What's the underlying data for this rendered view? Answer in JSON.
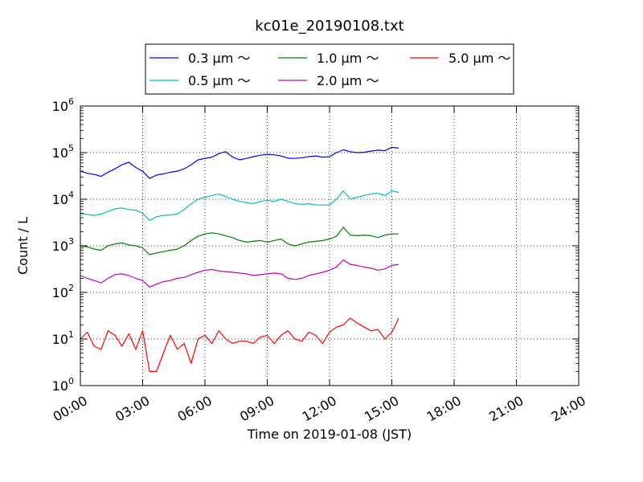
{
  "chart_data": {
    "type": "line",
    "title": "kc01e_20190108.txt",
    "xlabel": "Time on 2019-01-08 (JST)",
    "ylabel": "Count / L",
    "yscale": "log",
    "ylim": [
      1,
      1000000
    ],
    "xlim": [
      "00:00",
      "24:00"
    ],
    "grid": true,
    "legend_position": "top-center",
    "x_ticks": [
      "00:00",
      "03:00",
      "06:00",
      "09:00",
      "12:00",
      "15:00",
      "18:00",
      "21:00",
      "24:00"
    ],
    "y_ticks": [
      {
        "base": "10",
        "exp": "0",
        "value": 1
      },
      {
        "base": "10",
        "exp": "1",
        "value": 10
      },
      {
        "base": "10",
        "exp": "2",
        "value": 100
      },
      {
        "base": "10",
        "exp": "3",
        "value": 1000
      },
      {
        "base": "10",
        "exp": "4",
        "value": 10000
      },
      {
        "base": "10",
        "exp": "5",
        "value": 100000
      },
      {
        "base": "10",
        "exp": "6",
        "value": 1000000
      }
    ],
    "x": [
      "00:00",
      "00:20",
      "00:40",
      "01:00",
      "01:20",
      "01:40",
      "02:00",
      "02:20",
      "02:40",
      "03:00",
      "03:20",
      "03:40",
      "04:00",
      "04:20",
      "04:40",
      "05:00",
      "05:20",
      "05:40",
      "06:00",
      "06:20",
      "06:40",
      "07:00",
      "07:20",
      "07:40",
      "08:00",
      "08:20",
      "08:40",
      "09:00",
      "09:20",
      "09:40",
      "10:00",
      "10:20",
      "10:40",
      "11:00",
      "11:20",
      "11:40",
      "12:00",
      "12:20",
      "12:40",
      "13:00",
      "13:20",
      "13:40",
      "14:00",
      "14:20",
      "14:40",
      "15:00",
      "15:20"
    ],
    "series": [
      {
        "name": "0.3 µm ～",
        "color": "#0000ff",
        "values": [
          40000,
          36000,
          34000,
          31000,
          38000,
          45000,
          55000,
          62000,
          48000,
          40000,
          28000,
          33000,
          35000,
          38000,
          40000,
          45000,
          55000,
          70000,
          75000,
          80000,
          95000,
          105000,
          80000,
          70000,
          75000,
          82000,
          88000,
          92000,
          90000,
          85000,
          76000,
          75000,
          78000,
          82000,
          85000,
          80000,
          82000,
          100000,
          115000,
          105000,
          100000,
          102000,
          108000,
          113000,
          110000,
          130000,
          125000
        ]
      },
      {
        "name": "0.5 µm ～",
        "color": "#00bfbf",
        "values": [
          5000,
          4700,
          4500,
          4800,
          5500,
          6200,
          6500,
          6000,
          5800,
          5000,
          3500,
          4200,
          4500,
          4600,
          4800,
          6000,
          8000,
          10000,
          11000,
          12000,
          13000,
          11500,
          10000,
          9000,
          8500,
          8000,
          9000,
          9500,
          9000,
          10000,
          9000,
          8000,
          7800,
          8000,
          7500,
          7500,
          7500,
          10000,
          15000,
          10000,
          11000,
          12000,
          13000,
          13500,
          12000,
          15000,
          14000
        ]
      },
      {
        "name": "1.0 µm ～",
        "color": "#008000",
        "values": [
          1000,
          950,
          850,
          800,
          1000,
          1100,
          1150,
          1050,
          1000,
          900,
          650,
          700,
          750,
          800,
          850,
          1000,
          1300,
          1600,
          1800,
          1900,
          1800,
          1650,
          1500,
          1300,
          1200,
          1250,
          1300,
          1200,
          1300,
          1400,
          1100,
          1000,
          1100,
          1200,
          1250,
          1300,
          1400,
          1600,
          2500,
          1700,
          1650,
          1700,
          1650,
          1500,
          1700,
          1800,
          1800
        ]
      },
      {
        "name": "2.0 µm ～",
        "color": "#bf00bf",
        "values": [
          230,
          200,
          180,
          160,
          200,
          240,
          250,
          230,
          200,
          180,
          130,
          150,
          170,
          180,
          200,
          210,
          240,
          270,
          300,
          310,
          290,
          280,
          270,
          260,
          250,
          230,
          240,
          250,
          260,
          250,
          200,
          190,
          200,
          230,
          250,
          270,
          300,
          350,
          500,
          400,
          380,
          350,
          330,
          300,
          320,
          380,
          400
        ]
      },
      {
        "name": "5.0 µm ～",
        "color": "#ff0000",
        "values": [
          10,
          14,
          7,
          6,
          15,
          12,
          7,
          13,
          6,
          15,
          2,
          2,
          5,
          12,
          6,
          8,
          3,
          10,
          12,
          8,
          15,
          10,
          8,
          9,
          9,
          8,
          11,
          12,
          8,
          12,
          15,
          10,
          9,
          14,
          12,
          8,
          14,
          18,
          20,
          28,
          22,
          18,
          15,
          16,
          10,
          14,
          28
        ]
      }
    ]
  }
}
